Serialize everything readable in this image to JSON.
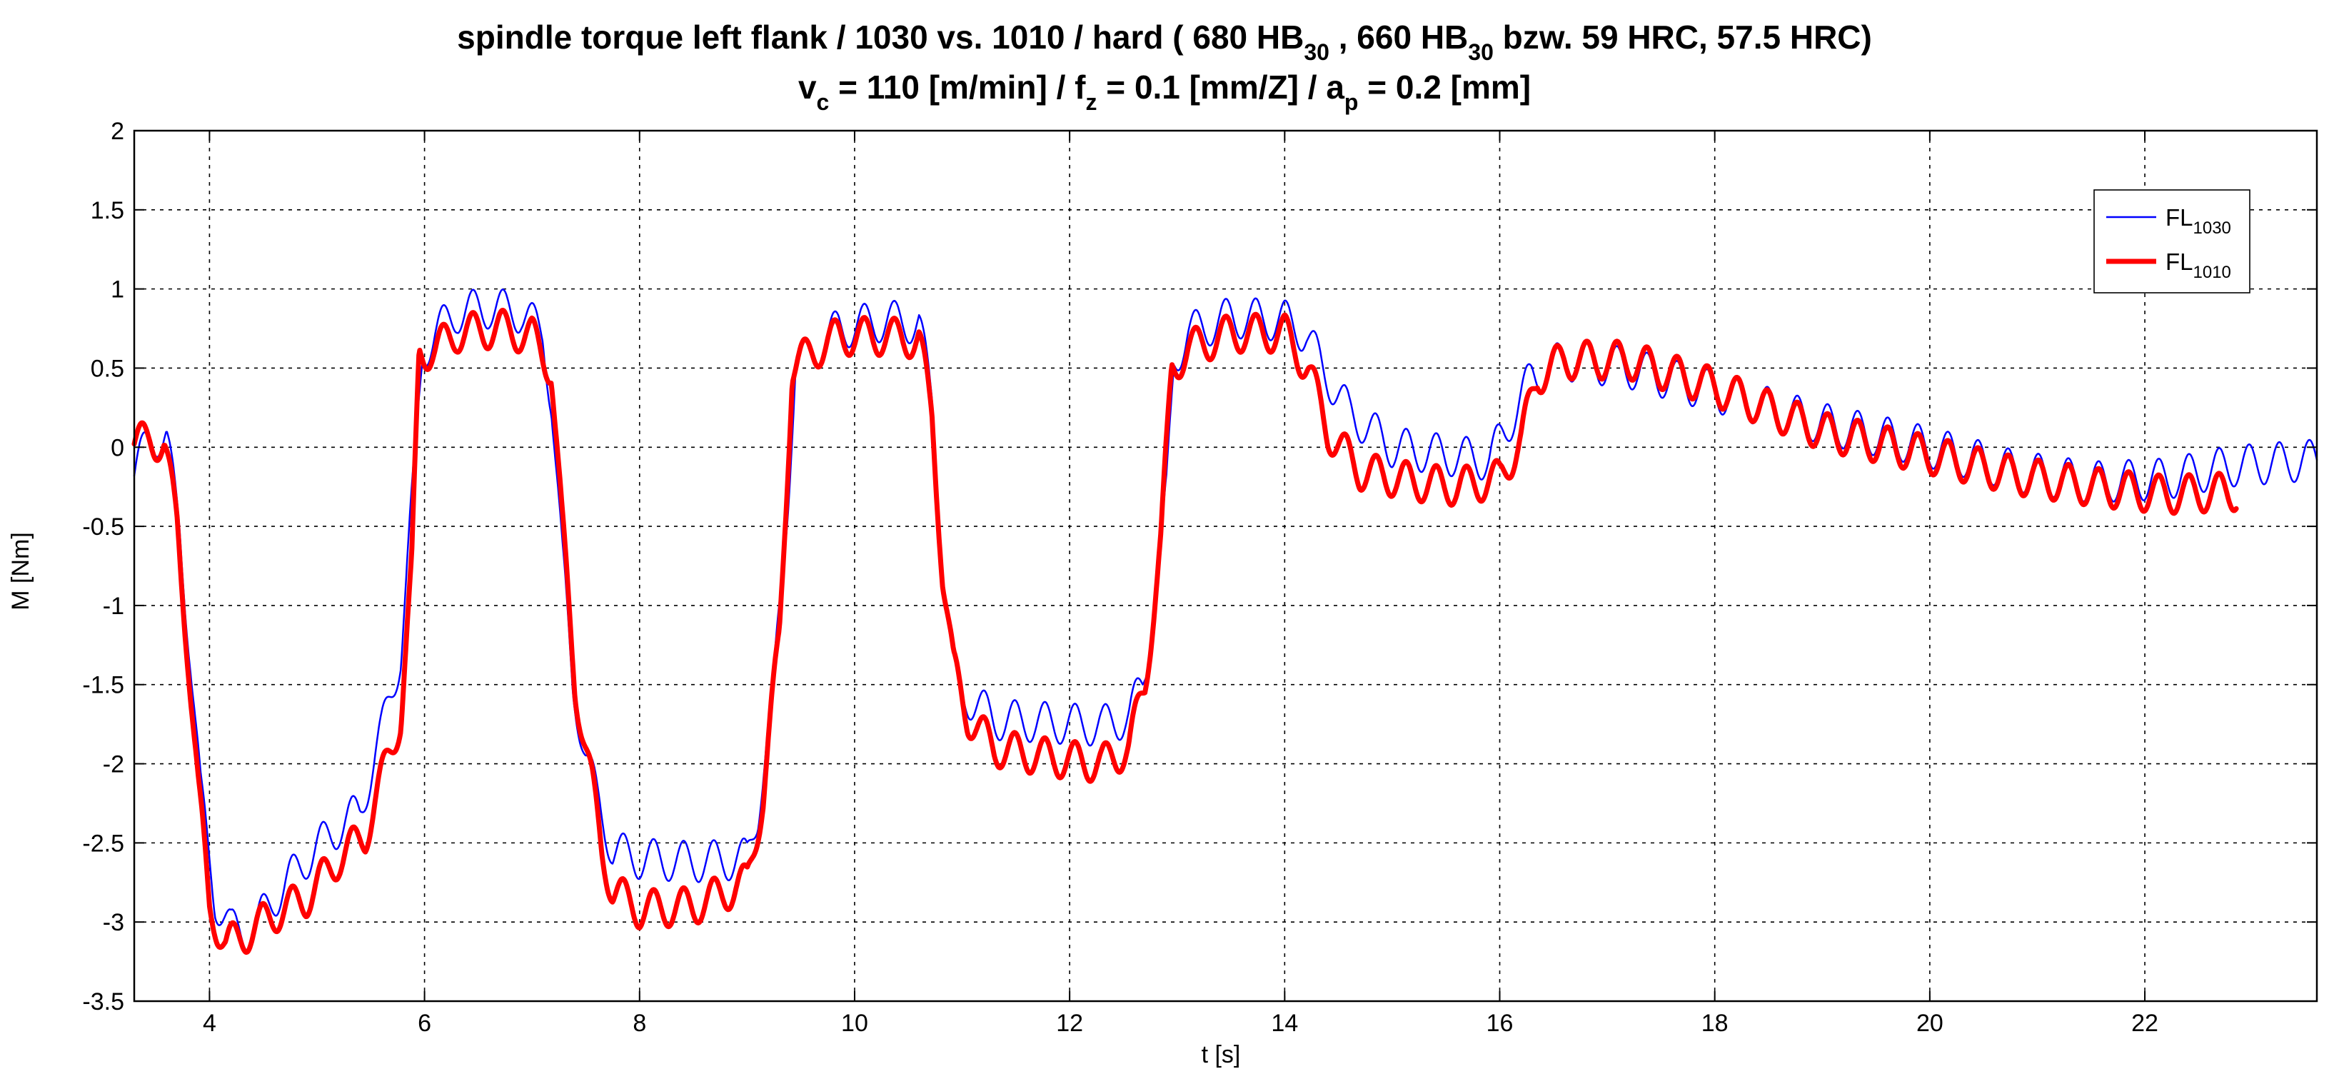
{
  "chart_data": {
    "type": "line",
    "title": {
      "line1": {
        "pre": "spindle torque left flank / 1030 vs. 1010 / hard ( 680 HB",
        "sub1": "30",
        "mid": " , 660 HB",
        "sub2": "30",
        "post": " bzw. 59 HRC, 57.5 HRC)"
      },
      "line2": {
        "v": "v",
        "v_sub": "c",
        "v_val": " = 110 [m/min] / f",
        "f_sub": "z",
        "f_val": " = 0.1 [mm/Z] / a",
        "a_sub": "p",
        "a_val": " = 0.2 [mm]"
      }
    },
    "xlabel": "t [s]",
    "ylabel": "M [Nm]",
    "xlim": [
      3.3,
      23.6
    ],
    "ylim": [
      -3.5,
      2
    ],
    "xticks": [
      4,
      6,
      8,
      10,
      12,
      14,
      16,
      18,
      20,
      22
    ],
    "yticks": [
      2,
      1.5,
      1,
      0.5,
      0,
      -0.5,
      -1,
      -1.5,
      -2,
      -2.5,
      -3,
      -3.5
    ],
    "grid": true,
    "legend_position": "top-right",
    "series": [
      {
        "name": "FL",
        "name_sub": "1030",
        "color": "#0000ff",
        "line": "thin",
        "t_end": 23.6,
        "ripple_period": 0.28,
        "ripple_amp": 0.13,
        "points": [
          [
            3.3,
            -0.18
          ],
          [
            3.45,
            0.08
          ],
          [
            3.6,
            0.05
          ],
          [
            3.72,
            -0.5
          ],
          [
            3.82,
            -1.3
          ],
          [
            3.92,
            -2.2
          ],
          [
            4.05,
            -2.85
          ],
          [
            4.2,
            -3.05
          ],
          [
            4.4,
            -3.05
          ],
          [
            4.6,
            -2.85
          ],
          [
            4.9,
            -2.6
          ],
          [
            5.2,
            -2.4
          ],
          [
            5.4,
            -2.3
          ],
          [
            5.6,
            -1.8
          ],
          [
            5.78,
            -1.3
          ],
          [
            5.9,
            -0.2
          ],
          [
            5.98,
            0.6
          ],
          [
            6.1,
            0.72
          ],
          [
            6.3,
            0.85
          ],
          [
            6.6,
            0.88
          ],
          [
            6.9,
            0.85
          ],
          [
            7.1,
            0.72
          ],
          [
            7.18,
            0.3
          ],
          [
            7.28,
            -0.7
          ],
          [
            7.38,
            -1.5
          ],
          [
            7.5,
            -1.95
          ],
          [
            7.6,
            -2.2
          ],
          [
            7.75,
            -2.55
          ],
          [
            8.0,
            -2.6
          ],
          [
            8.5,
            -2.62
          ],
          [
            9.0,
            -2.6
          ],
          [
            9.1,
            -2.3
          ],
          [
            9.25,
            -1.5
          ],
          [
            9.38,
            -0.3
          ],
          [
            9.45,
            0.5
          ],
          [
            9.6,
            0.6
          ],
          [
            9.85,
            0.75
          ],
          [
            10.3,
            0.8
          ],
          [
            10.6,
            0.78
          ],
          [
            10.72,
            0.3
          ],
          [
            10.82,
            -0.8
          ],
          [
            10.92,
            -1.4
          ],
          [
            11.0,
            -1.55
          ],
          [
            11.3,
            -1.72
          ],
          [
            11.8,
            -1.74
          ],
          [
            12.3,
            -1.76
          ],
          [
            12.55,
            -1.7
          ],
          [
            12.68,
            -1.5
          ],
          [
            12.8,
            -1.0
          ],
          [
            12.9,
            -0.3
          ],
          [
            12.97,
            0.55
          ],
          [
            13.1,
            0.72
          ],
          [
            13.5,
            0.82
          ],
          [
            14.0,
            0.8
          ],
          [
            14.2,
            0.72
          ],
          [
            14.35,
            0.5
          ],
          [
            14.6,
            0.22
          ],
          [
            15.0,
            0.0
          ],
          [
            15.5,
            -0.05
          ],
          [
            15.9,
            -0.08
          ],
          [
            16.05,
            0.1
          ],
          [
            16.3,
            0.45
          ],
          [
            16.6,
            0.55
          ],
          [
            17.2,
            0.5
          ],
          [
            18.0,
            0.35
          ],
          [
            19.0,
            0.15
          ],
          [
            20.0,
            0.0
          ],
          [
            20.8,
            -0.15
          ],
          [
            21.5,
            -0.22
          ],
          [
            22.2,
            -0.2
          ],
          [
            22.8,
            -0.12
          ],
          [
            23.6,
            -0.08
          ]
        ]
      },
      {
        "name": "FL",
        "name_sub": "1010",
        "color": "#ff0000",
        "line": "thick",
        "t_end": 22.85,
        "ripple_period": 0.28,
        "ripple_amp": 0.12,
        "points": [
          [
            3.3,
            0.02
          ],
          [
            3.45,
            0.05
          ],
          [
            3.58,
            0.02
          ],
          [
            3.7,
            -0.5
          ],
          [
            3.8,
            -1.3
          ],
          [
            3.9,
            -2.2
          ],
          [
            4.0,
            -2.9
          ],
          [
            4.15,
            -3.15
          ],
          [
            4.4,
            -3.05
          ],
          [
            4.6,
            -2.95
          ],
          [
            4.9,
            -2.85
          ],
          [
            5.2,
            -2.6
          ],
          [
            5.45,
            -2.45
          ],
          [
            5.6,
            -2.1
          ],
          [
            5.78,
            -1.7
          ],
          [
            5.88,
            -0.8
          ],
          [
            5.95,
            0.6
          ],
          [
            6.1,
            0.62
          ],
          [
            6.3,
            0.72
          ],
          [
            6.7,
            0.75
          ],
          [
            7.0,
            0.7
          ],
          [
            7.18,
            0.5
          ],
          [
            7.28,
            -0.5
          ],
          [
            7.4,
            -1.5
          ],
          [
            7.55,
            -2.1
          ],
          [
            7.65,
            -2.55
          ],
          [
            7.75,
            -2.8
          ],
          [
            8.0,
            -2.92
          ],
          [
            8.5,
            -2.9
          ],
          [
            9.0,
            -2.75
          ],
          [
            9.15,
            -2.2
          ],
          [
            9.3,
            -1.2
          ],
          [
            9.42,
            0.5
          ],
          [
            9.6,
            0.6
          ],
          [
            9.85,
            0.7
          ],
          [
            10.3,
            0.7
          ],
          [
            10.6,
            0.68
          ],
          [
            10.72,
            0.2
          ],
          [
            10.82,
            -0.8
          ],
          [
            10.92,
            -1.4
          ],
          [
            11.05,
            -1.7
          ],
          [
            11.3,
            -1.9
          ],
          [
            11.8,
            -1.96
          ],
          [
            12.3,
            -2.0
          ],
          [
            12.55,
            -1.9
          ],
          [
            12.7,
            -1.5
          ],
          [
            12.85,
            -0.6
          ],
          [
            12.95,
            0.5
          ],
          [
            13.1,
            0.62
          ],
          [
            13.5,
            0.72
          ],
          [
            14.0,
            0.72
          ],
          [
            14.22,
            0.5
          ],
          [
            14.4,
            0.1
          ],
          [
            14.7,
            -0.15
          ],
          [
            15.2,
            -0.22
          ],
          [
            15.6,
            -0.25
          ],
          [
            16.0,
            -0.2
          ],
          [
            16.2,
            0.05
          ],
          [
            16.35,
            0.45
          ],
          [
            16.6,
            0.55
          ],
          [
            17.2,
            0.55
          ],
          [
            18.0,
            0.38
          ],
          [
            19.0,
            0.1
          ],
          [
            20.0,
            -0.05
          ],
          [
            20.8,
            -0.18
          ],
          [
            21.5,
            -0.25
          ],
          [
            22.2,
            -0.3
          ],
          [
            22.85,
            -0.28
          ]
        ]
      }
    ]
  }
}
